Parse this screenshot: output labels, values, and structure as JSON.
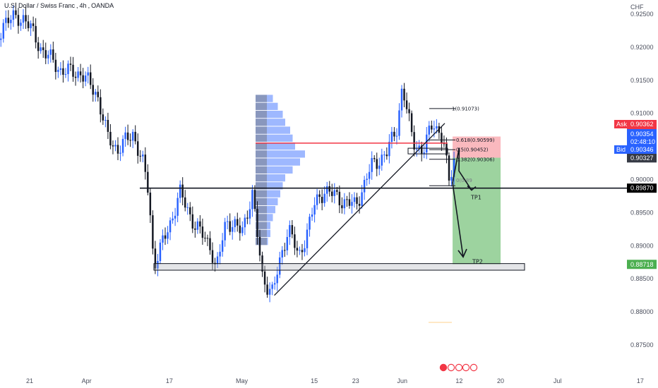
{
  "header": {
    "symbol": "U.S. Dollar / Swiss Franc",
    "timeframe": "4h",
    "source": "OANDA"
  },
  "colors": {
    "up": "#2962ff",
    "down": "#131722",
    "ask": "#f23645",
    "bid": "#2962ff",
    "target_zone": "#4caf50",
    "stop_zone": "#f23645",
    "profile": "#2962ff",
    "profile_gray": "#787b86"
  },
  "chart_data": {
    "type": "candlestick",
    "title": "U.S. Dollar / Swiss Franc, 4h, OANDA",
    "currency": "CHF",
    "grid": false,
    "ylim": [
      0.8725,
      0.9275
    ],
    "y_ticks": [
      "0.92500",
      "0.92000",
      "0.91500",
      "0.91000",
      "0.90500",
      "0.90000",
      "0.89500",
      "0.89000",
      "0.88500",
      "0.88000",
      "0.87500"
    ],
    "x_ticks": [
      "21",
      "Apr",
      "17",
      "May",
      "15",
      "23",
      "Jun",
      "12",
      "20",
      "Jul",
      "17"
    ],
    "price_path": [
      {
        "date": "Mar 14",
        "close": 0.919
      },
      {
        "date": "Mar 16",
        "close": 0.924
      },
      {
        "date": "Mar 20",
        "close": 0.9245
      },
      {
        "date": "Mar 23",
        "close": 0.92
      },
      {
        "date": "Mar 27",
        "close": 0.9165
      },
      {
        "date": "Mar 31",
        "close": 0.916
      },
      {
        "date": "Apr 3",
        "close": 0.913
      },
      {
        "date": "Apr 5",
        "close": 0.9065
      },
      {
        "date": "Apr 7",
        "close": 0.9045
      },
      {
        "date": "Apr 10",
        "close": 0.907
      },
      {
        "date": "Apr 12",
        "close": 0.902
      },
      {
        "date": "Apr 13",
        "close": 0.898
      },
      {
        "date": "Apr 14",
        "close": 0.887
      },
      {
        "date": "Apr 17",
        "close": 0.893
      },
      {
        "date": "Apr 19",
        "close": 0.898
      },
      {
        "date": "Apr 22",
        "close": 0.893
      },
      {
        "date": "Apr 25",
        "close": 0.89
      },
      {
        "date": "Apr 26",
        "close": 0.886
      },
      {
        "date": "Apr 28",
        "close": 0.894
      },
      {
        "date": "May 1",
        "close": 0.892
      },
      {
        "date": "May 3",
        "close": 0.898
      },
      {
        "date": "May 5",
        "close": 0.885
      },
      {
        "date": "May 7",
        "close": 0.883
      },
      {
        "date": "May 10",
        "close": 0.893
      },
      {
        "date": "May 12",
        "close": 0.888
      },
      {
        "date": "May 15",
        "close": 0.896
      },
      {
        "date": "May 17",
        "close": 0.8985
      },
      {
        "date": "May 20",
        "close": 0.897
      },
      {
        "date": "May 23",
        "close": 0.896
      },
      {
        "date": "May 26",
        "close": 0.902
      },
      {
        "date": "May 29",
        "close": 0.904
      },
      {
        "date": "May 31",
        "close": 0.908
      },
      {
        "date": "Jun 1",
        "close": 0.914
      },
      {
        "date": "Jun 3",
        "close": 0.906
      },
      {
        "date": "Jun 5",
        "close": 0.904
      },
      {
        "date": "Jun 7",
        "close": 0.909
      },
      {
        "date": "Jun 9",
        "close": 0.9055
      },
      {
        "date": "Jun 10",
        "close": 0.8995
      },
      {
        "date": "Jun 11",
        "close": 0.9033
      }
    ],
    "price_labels": {
      "upper": "0.90725",
      "black": "0.90385",
      "ask_label": "Ask",
      "ask": "0.90362",
      "blue_a": "0.90354",
      "countdown": "02:48:10",
      "bid_label": "Bid",
      "bid": "0.90346",
      "current": "0.90327",
      "support": "0.89870",
      "tp2": "0.88718"
    },
    "drawings": {
      "fib_1": "1(0.91073)",
      "fib_618": "0.618(0.90599)",
      "fib_05": "0.5(0.90452)",
      "fib_382": "0.382(0.90306)",
      "fib_0_partial": "0(0.89",
      "tp1": "TP1",
      "tp2": "TP2"
    },
    "levels": {
      "support": 0.8987,
      "poc": 0.9055,
      "base_zone": [
        0.8863,
        0.8873
      ],
      "fib_1": 0.91073,
      "fib_618": 0.90599,
      "fib_05": 0.90452,
      "fib_382": 0.90306,
      "fib_0": 0.8995,
      "entry": 0.9033,
      "tp1": 0.8985,
      "tp2": 0.8872,
      "stop": 0.9065
    }
  }
}
